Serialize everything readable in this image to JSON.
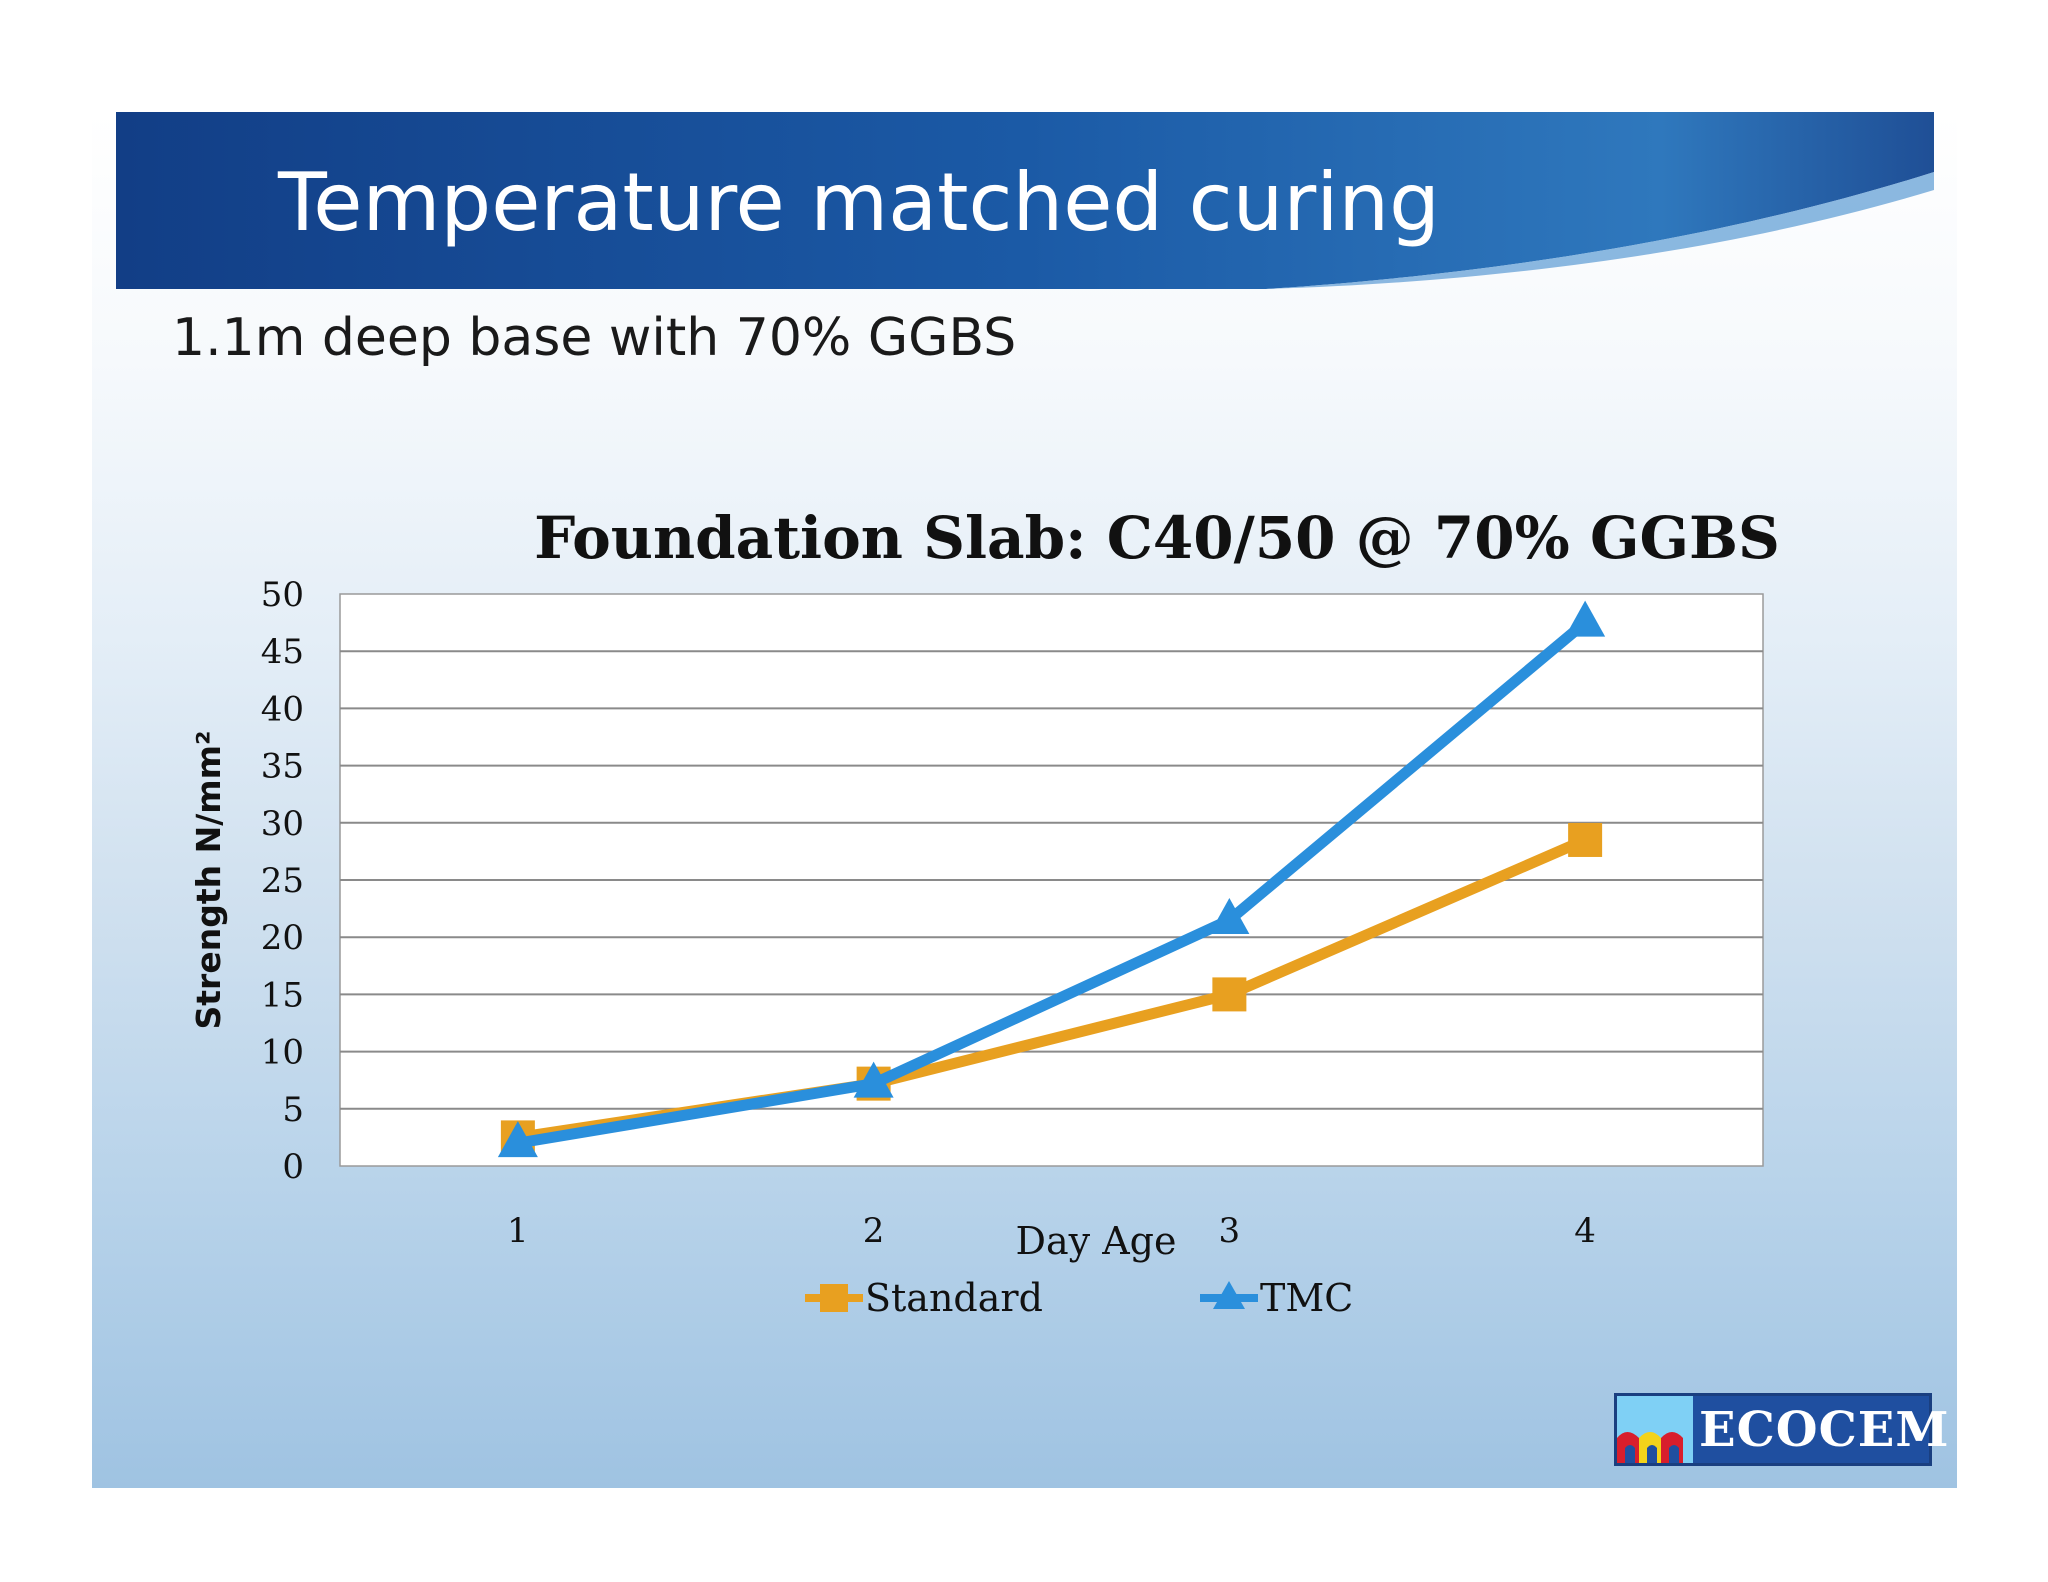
{
  "slide": {
    "title": "Temperature matched curing",
    "subtitle": "1.1m deep base with 70% GGBS"
  },
  "logo": {
    "text": "ECOCEM"
  },
  "chart_data": {
    "type": "line",
    "title": "Foundation Slab: C40/50 @ 70% GGBS",
    "xlabel": "Day Age",
    "ylabel": "Strength N/mm²",
    "categories": [
      "1",
      "2",
      "3",
      "4"
    ],
    "ylim": [
      0,
      50
    ],
    "yticks": [
      0,
      5,
      10,
      15,
      20,
      25,
      30,
      35,
      40,
      45,
      50
    ],
    "grid": true,
    "legend": "bottom",
    "series": [
      {
        "name": "Standard",
        "values": [
          2.5,
          7.2,
          15.0,
          28.5
        ],
        "color": "#e8a020",
        "marker": "square"
      },
      {
        "name": "TMC",
        "values": [
          2.0,
          7.2,
          21.5,
          47.5
        ],
        "color": "#2a8fdc",
        "marker": "triangle"
      }
    ]
  }
}
